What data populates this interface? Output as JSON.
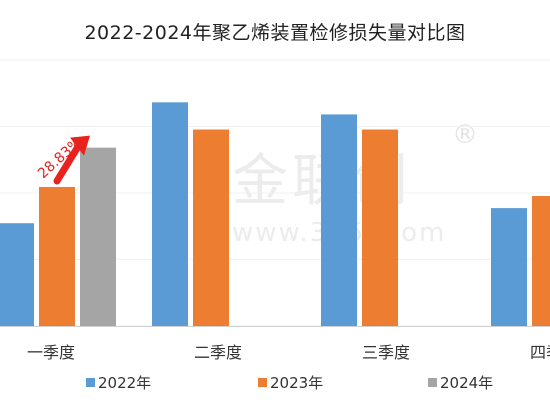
{
  "chart_data": {
    "type": "bar",
    "title": "2022-2024年聚乙烯装置检修损失量对比图",
    "categories": [
      "一季度",
      "二季度",
      "三季度",
      "四季度"
    ],
    "series": [
      {
        "name": "2022年",
        "color": "#5b9bd5",
        "values": [
          34,
          74,
          70,
          39
        ]
      },
      {
        "name": "2023年",
        "color": "#ed7d31",
        "values": [
          46,
          65,
          65,
          43
        ]
      },
      {
        "name": "2024年",
        "color": "#a5a5a5",
        "values": [
          59,
          null,
          null,
          null
        ]
      }
    ],
    "ylim": [
      0,
      88
    ],
    "annotation": {
      "text": "28.83%",
      "color": "#e8231f"
    },
    "grid": true,
    "legend_position": "bottom"
  },
  "watermark": {
    "brand": "金联创",
    "url": "www.315i.com",
    "registered": "®"
  }
}
